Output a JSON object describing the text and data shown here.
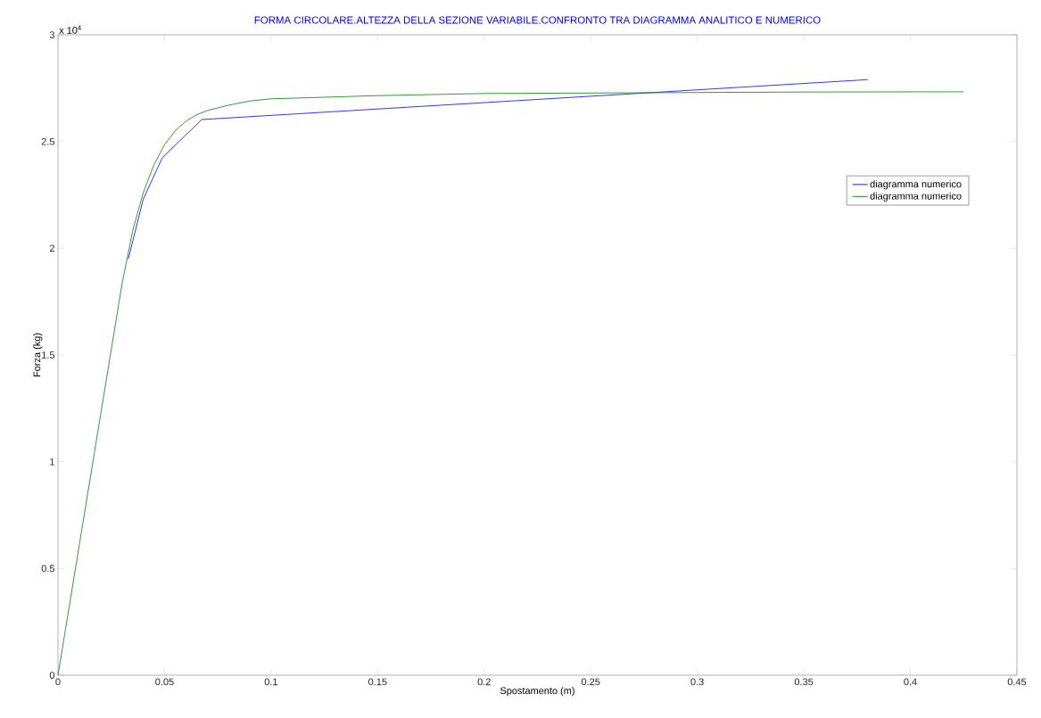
{
  "chart_data": {
    "type": "line",
    "title": "FORMA CIRCOLARE.ALTEZZA DELLA SEZIONE VARIABILE.CONFRONTO TRA DIAGRAMMA ANALITICO E NUMERICO",
    "xlabel": "Spostamento (m)",
    "ylabel": "Forza (kg)",
    "annotations": [
      "x 10$^{4}$"
    ],
    "xlim": [
      0,
      0.45
    ],
    "ylim": [
      0,
      3
    ],
    "xticks": [
      0,
      0.05,
      0.1,
      0.15,
      0.2,
      0.25,
      0.3,
      0.35,
      0.4,
      0.45
    ],
    "yticks": [
      0,
      0.5,
      1,
      1.5,
      2,
      2.5,
      3
    ],
    "legend": "top right",
    "grid": false,
    "marker": "none",
    "line_style": "solid",
    "series": [
      {
        "name": "diagramma numerico",
        "color": "#0000ff",
        "x": [
          0.033,
          0.04,
          0.049,
          0.0675,
          0.38
        ],
        "values": [
          1.95,
          2.23,
          2.425,
          2.603,
          2.79
        ]
      },
      {
        "name": "diagramma numerico",
        "color": "#008000",
        "x": [
          0,
          0.03,
          0.035,
          0.04,
          0.045,
          0.05,
          0.055,
          0.06,
          0.065,
          0.07,
          0.08,
          0.09,
          0.1,
          0.15,
          0.2,
          0.35,
          0.425
        ],
        "values": [
          0,
          1.83,
          2.08,
          2.26,
          2.39,
          2.485,
          2.55,
          2.595,
          2.625,
          2.645,
          2.67,
          2.69,
          2.7,
          2.715,
          2.725,
          2.732,
          2.733
        ]
      }
    ]
  }
}
